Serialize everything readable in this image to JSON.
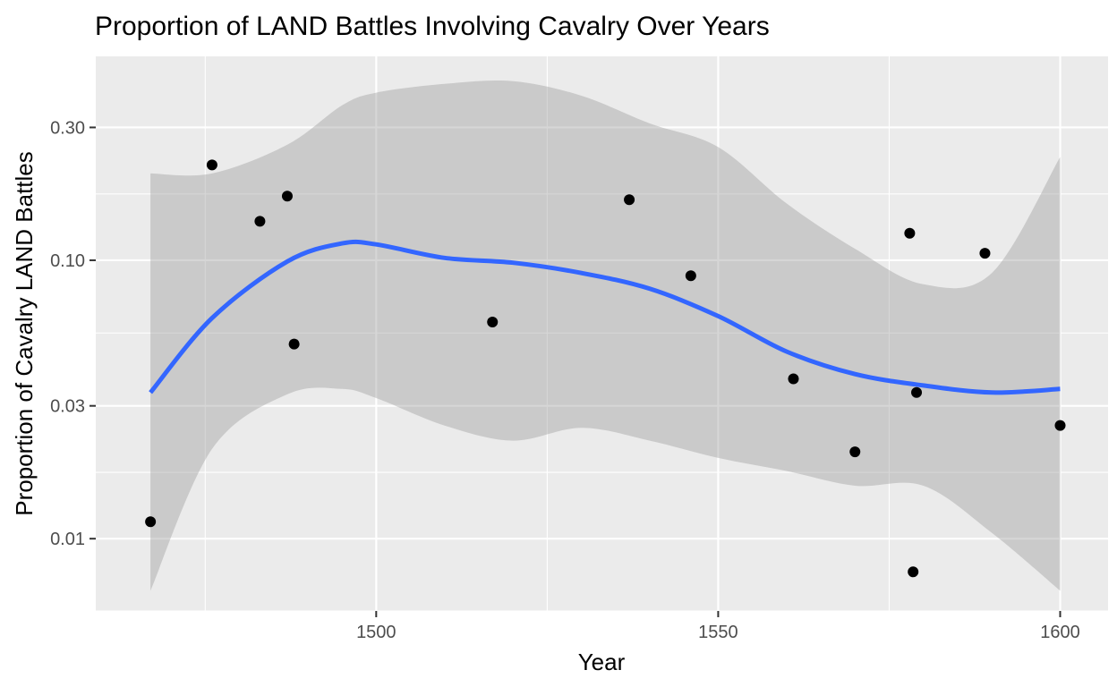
{
  "chart_data": {
    "type": "scatter",
    "title": "Proportion of LAND Battles Involving Cavalry Over Years",
    "xlabel": "Year",
    "ylabel": "Proportion of Cavalry LAND Battles",
    "x_scale": "linear",
    "y_scale": "log10",
    "xlim": [
      1459,
      1607
    ],
    "ylim": [
      0.0055,
      0.54
    ],
    "x_ticks": [
      1500,
      1550,
      1600
    ],
    "x_tick_labels": [
      "1500",
      "1550",
      "1600"
    ],
    "x_minor_ticks": [
      1475,
      1525,
      1575
    ],
    "y_ticks": [
      0.01,
      0.03,
      0.1,
      0.3
    ],
    "y_tick_labels": [
      "0.01",
      "0.03",
      "0.10",
      "0.30"
    ],
    "y_minor_ticks": [
      0.0055,
      0.0173,
      0.0548,
      0.173
    ],
    "grid": true,
    "legend": "none",
    "series": [
      {
        "kind": "points",
        "x": [
          1467,
          1476,
          1483,
          1487,
          1488,
          1517,
          1537,
          1546,
          1561,
          1570,
          1578,
          1578.5,
          1579,
          1589,
          1600
        ],
        "y": [
          0.0115,
          0.22,
          0.138,
          0.17,
          0.05,
          0.06,
          0.165,
          0.088,
          0.0375,
          0.0205,
          0.125,
          0.0076,
          0.0335,
          0.106,
          0.0255
        ]
      },
      {
        "kind": "smooth",
        "method": "loess",
        "x": [
          1467,
          1476,
          1487,
          1495,
          1500,
          1510,
          1520,
          1530,
          1540,
          1550,
          1560,
          1570,
          1580,
          1590,
          1600
        ],
        "y": [
          0.0335,
          0.062,
          0.099,
          0.115,
          0.114,
          0.102,
          0.098,
          0.09,
          0.079,
          0.063,
          0.047,
          0.039,
          0.0355,
          0.0335,
          0.0345
        ],
        "ci_lower": [
          0.0065,
          0.021,
          0.033,
          0.0345,
          0.032,
          0.0255,
          0.0225,
          0.025,
          0.0225,
          0.0195,
          0.0175,
          0.0155,
          0.0155,
          0.0105,
          0.0065
        ],
        "ci_upper": [
          0.205,
          0.205,
          0.26,
          0.36,
          0.4,
          0.43,
          0.44,
          0.39,
          0.31,
          0.255,
          0.16,
          0.11,
          0.082,
          0.09,
          0.235
        ]
      }
    ],
    "colors": {
      "panel": "#ebebeb",
      "grid": "#ffffff",
      "points": "#000000",
      "smooth_line": "#3366ff",
      "ribbon": "#999999",
      "tick_text": "#4d4d4d"
    }
  }
}
